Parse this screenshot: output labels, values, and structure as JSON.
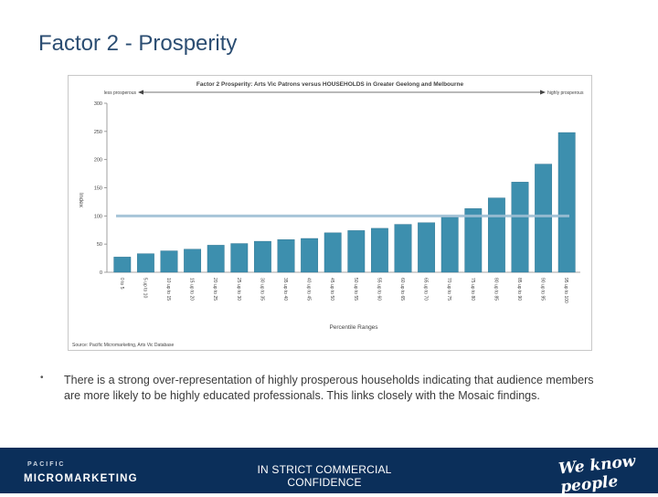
{
  "slide": {
    "title": "Factor 2 - Prosperity"
  },
  "chart_data": {
    "type": "bar",
    "title": "Factor 2 Prosperity: Arts Vic Patrons versus HOUSEHOLDS in Greater Geelong and Melbourne",
    "xlabel": "Percentile Ranges",
    "ylabel": "Index",
    "ylim": [
      0,
      300
    ],
    "yticks": [
      0,
      50,
      100,
      150,
      200,
      250,
      300
    ],
    "reference_line": 100,
    "left_annotation": "less prosperous",
    "right_annotation": "highly prosperous",
    "source": "Source: Pacific Micromarketing, Arts Vic Database",
    "categories": [
      "0 to 5",
      "5 up to 10",
      "10 up to 15",
      "15 up to 20",
      "20 up to 25",
      "25 up to 30",
      "30 up to 35",
      "35 up to 40",
      "40 up to 45",
      "45 up to 50",
      "50 up to 55",
      "55 up to 60",
      "60 up to 65",
      "65 up to 70",
      "70 up to 75",
      "75 up to 80",
      "80 up to 85",
      "85 up to 90",
      "90 up to 95",
      "95 up to 100"
    ],
    "values": [
      27,
      33,
      38,
      41,
      48,
      51,
      55,
      58,
      60,
      70,
      74,
      78,
      85,
      88,
      98,
      113,
      132,
      160,
      192,
      248
    ],
    "colors": {
      "bar": "#3d8fae",
      "bar_edge": "#2b6f8c",
      "reference": "#9dbfd4",
      "axis": "#888888",
      "text": "#444444"
    }
  },
  "bullet": {
    "symbol": "•",
    "text": "There is a strong over-representation of  highly prosperous households indicating that audience members are more likely to be highly educated professionals. This links closely with the Mosaic findings."
  },
  "footer": {
    "logo_top": "PACIFIC",
    "logo_bottom": "MICROMARKETING",
    "notice": "IN STRICT COMMERCIAL CONFIDENCE",
    "tagline": "We know people"
  }
}
